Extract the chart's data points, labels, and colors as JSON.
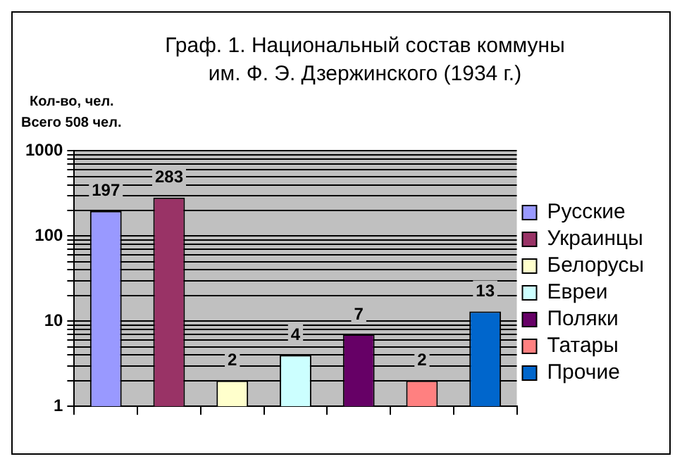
{
  "chart_data": {
    "type": "bar",
    "title": "Граф. 1. Национальный состав коммуны им. Ф. Э. Дзержинского  (1934 г.)",
    "ylabel": "Кол-во, чел.",
    "annotations": [
      "Всего 508 чел."
    ],
    "categories": [
      null,
      null,
      null,
      null,
      null,
      null,
      null
    ],
    "series": [
      {
        "name": "Русские",
        "color": "#9999ff",
        "values": [
          197,
          null,
          null,
          null,
          null,
          null,
          null
        ]
      },
      {
        "name": "Украинцы",
        "color": "#993366",
        "values": [
          null,
          283,
          null,
          null,
          null,
          null,
          null
        ]
      },
      {
        "name": "Белорусы",
        "color": "#ffffcc",
        "values": [
          null,
          null,
          2,
          null,
          null,
          null,
          null
        ]
      },
      {
        "name": "Евреи",
        "color": "#ccffff",
        "values": [
          null,
          null,
          null,
          4,
          null,
          null,
          null
        ]
      },
      {
        "name": "Поляки",
        "color": "#660066",
        "values": [
          null,
          null,
          null,
          null,
          7,
          null,
          null
        ]
      },
      {
        "name": "Татары",
        "color": "#ff8080",
        "values": [
          null,
          null,
          null,
          null,
          null,
          2,
          null
        ]
      },
      {
        "name": "Прочие",
        "color": "#0066cc",
        "values": [
          null,
          null,
          null,
          null,
          null,
          null,
          13
        ]
      }
    ],
    "log": "y",
    "ylim": [
      1,
      1000
    ],
    "yticks": [
      1,
      {
        "value": 2,
        "label": null
      },
      {
        "value": 3,
        "label": null
      },
      {
        "value": 4,
        "label": null
      },
      {
        "value": 5,
        "label": null
      },
      {
        "value": 6,
        "label": null
      },
      {
        "value": 7,
        "label": null
      },
      {
        "value": 8,
        "label": null
      },
      {
        "value": 9,
        "label": null
      },
      10,
      {
        "value": 20,
        "label": null
      },
      {
        "value": 30,
        "label": null
      },
      {
        "value": 40,
        "label": null
      },
      {
        "value": 50,
        "label": null
      },
      {
        "value": 60,
        "label": null
      },
      {
        "value": 70,
        "label": null
      },
      {
        "value": 80,
        "label": null
      },
      {
        "value": 90,
        "label": null
      },
      100,
      {
        "value": 200,
        "label": null
      },
      {
        "value": 300,
        "label": null
      },
      {
        "value": 400,
        "label": null
      },
      {
        "value": 500,
        "label": null
      },
      {
        "value": 600,
        "label": null
      },
      {
        "value": 700,
        "label": null
      },
      {
        "value": 800,
        "label": null
      },
      {
        "value": 900,
        "label": null
      },
      1000
    ],
    "grid": "y",
    "legend": "right",
    "data_labels": true
  }
}
